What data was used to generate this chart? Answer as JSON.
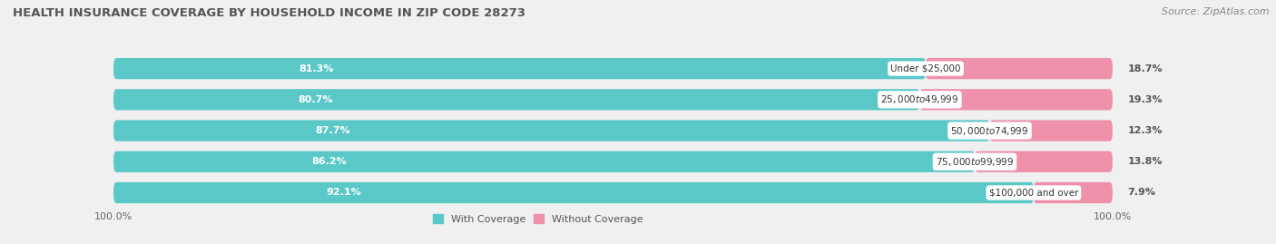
{
  "title": "HEALTH INSURANCE COVERAGE BY HOUSEHOLD INCOME IN ZIP CODE 28273",
  "source": "Source: ZipAtlas.com",
  "categories": [
    "Under $25,000",
    "$25,000 to $49,999",
    "$50,000 to $74,999",
    "$75,000 to $99,999",
    "$100,000 and over"
  ],
  "with_coverage": [
    81.3,
    80.7,
    87.7,
    86.2,
    92.1
  ],
  "without_coverage": [
    18.7,
    19.3,
    12.3,
    13.8,
    7.9
  ],
  "color_with": "#5bc8c8",
  "color_without": "#ef91ab",
  "bg_color": "#f0f0f0",
  "bar_bg_color": "#e8e8ee",
  "title_fontsize": 9.5,
  "source_fontsize": 8,
  "bar_label_fontsize": 8,
  "category_label_fontsize": 7.5,
  "legend_fontsize": 8,
  "bar_height": 0.68,
  "figsize": [
    14.06,
    2.69
  ],
  "dpi": 100,
  "total_bar_width": 100,
  "legend_with": "With Coverage",
  "legend_without": "Without Coverage"
}
